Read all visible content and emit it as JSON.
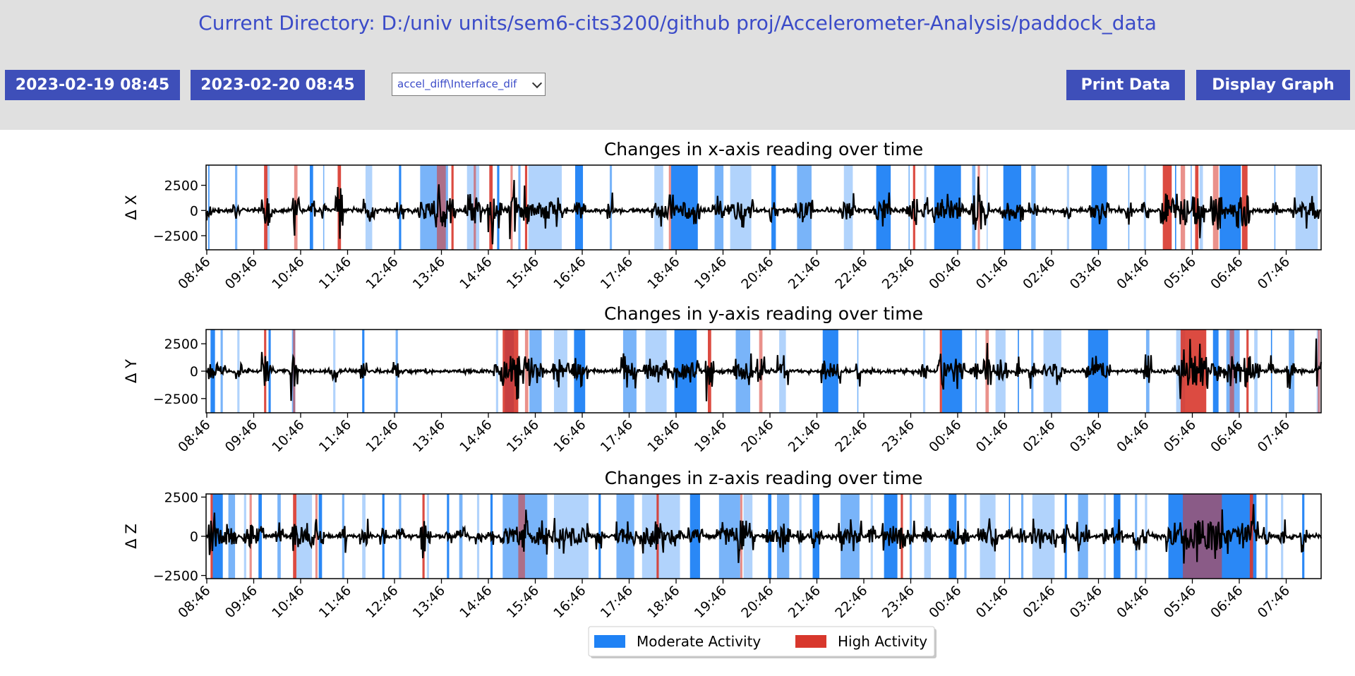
{
  "header": {
    "directory_label": "Current Directory: D:/univ units/sem6-cits3200/github proj/Accelerometer-Analysis/paddock_data"
  },
  "toolbar": {
    "start_datetime": "2023-02-19 08:45",
    "end_datetime": "2023-02-20 08:45",
    "file_select_value": "accel_diff\\Interface_dif",
    "print_label": "Print Data",
    "display_label": "Display Graph"
  },
  "colors": {
    "toolbar_bg": "#e0e0e0",
    "button_bg": "#3e4fb9",
    "directory_text": "#3b4bc8",
    "moderate": "#1f82f5",
    "high": "#d8372c",
    "signal": "#000000"
  },
  "chart_data": [
    {
      "type": "line",
      "title": "Changes in x-axis reading over time",
      "xlabel": "",
      "ylabel": "Δ X",
      "x_ticks": [
        "08:46",
        "09:46",
        "10:46",
        "11:46",
        "12:46",
        "13:46",
        "14:46",
        "15:46",
        "16:46",
        "17:46",
        "18:46",
        "19:46",
        "20:46",
        "21:46",
        "22:46",
        "23:46",
        "00:46",
        "01:46",
        "02:46",
        "03:46",
        "04:46",
        "05:46",
        "06:46",
        "07:46"
      ],
      "y_ticks": [
        2500,
        0,
        -2500
      ],
      "ylim": [
        -3900,
        4500
      ],
      "series": [
        {
          "values": []
        }
      ],
      "activity_bands": {
        "moderate": [
          [
            0.2,
            0.3
          ],
          [
            2.6,
            2.8
          ],
          [
            5.4,
            5.7
          ],
          [
            9.3,
            9.6
          ],
          [
            10.5,
            10.6
          ],
          [
            14.3,
            14.9
          ],
          [
            17.3,
            17.5
          ],
          [
            19.2,
            21.7
          ],
          [
            23.4,
            24.5
          ],
          [
            26.1,
            26.3
          ],
          [
            28.0,
            28.2
          ],
          [
            28.9,
            31.9
          ],
          [
            33.1,
            33.8
          ],
          [
            36.2,
            36.4
          ],
          [
            40.2,
            41.0
          ],
          [
            41.7,
            44.1
          ],
          [
            45.6,
            46.4
          ],
          [
            47.0,
            48.9
          ],
          [
            50.7,
            51.1
          ],
          [
            53.0,
            54.3
          ],
          [
            57.2,
            58.0
          ],
          [
            60.1,
            61.4
          ],
          [
            63.0,
            63.1
          ],
          [
            64.4,
            64.6
          ],
          [
            65.3,
            67.7
          ],
          [
            68.7,
            69.0
          ],
          [
            70.0,
            70.1
          ],
          [
            71.5,
            73.1
          ],
          [
            74.0,
            74.4
          ],
          [
            77.2,
            77.4
          ],
          [
            79.4,
            80.8
          ],
          [
            82.7,
            82.8
          ],
          [
            84.1,
            84.3
          ],
          [
            86.9,
            87.0
          ],
          [
            88.3,
            88.4
          ],
          [
            89.1,
            89.4
          ],
          [
            90.9,
            92.8
          ],
          [
            95.8,
            95.9
          ],
          [
            97.7,
            99.7
          ]
        ],
        "high": [
          [
            5.2,
            5.5
          ],
          [
            7.9,
            8.2
          ],
          [
            11.8,
            12.1
          ],
          [
            20.7,
            21.5
          ],
          [
            22.0,
            22.2
          ],
          [
            24.0,
            24.2
          ],
          [
            25.4,
            25.7
          ],
          [
            27.3,
            27.5
          ],
          [
            28.6,
            28.8
          ],
          [
            41.5,
            41.7
          ],
          [
            63.4,
            63.6
          ],
          [
            69.2,
            69.4
          ],
          [
            85.8,
            86.6
          ],
          [
            87.4,
            87.8
          ],
          [
            88.7,
            89.0
          ],
          [
            90.3,
            90.8
          ],
          [
            92.9,
            93.4
          ]
        ]
      }
    },
    {
      "type": "line",
      "title": "Changes in y-axis reading over time",
      "xlabel": "",
      "ylabel": "Δ Y",
      "x_ticks": [
        "08:46",
        "09:46",
        "10:46",
        "11:46",
        "12:46",
        "13:46",
        "14:46",
        "15:46",
        "16:46",
        "17:46",
        "18:46",
        "19:46",
        "20:46",
        "21:46",
        "22:46",
        "23:46",
        "00:46",
        "01:46",
        "02:46",
        "03:46",
        "04:46",
        "05:46",
        "06:46",
        "07:46"
      ],
      "y_ticks": [
        2500,
        0,
        -2500
      ],
      "ylim": [
        -3800,
        3800
      ],
      "series": [
        {
          "values": []
        }
      ],
      "activity_bands": {
        "moderate": [
          [
            0.4,
            0.8
          ],
          [
            1.3,
            1.5
          ],
          [
            2.8,
            3.0
          ],
          [
            5.6,
            5.8
          ],
          [
            7.7,
            8.0
          ],
          [
            11.4,
            11.6
          ],
          [
            14.0,
            14.2
          ],
          [
            17.0,
            17.2
          ],
          [
            26.0,
            26.2
          ],
          [
            26.8,
            27.6
          ],
          [
            29.0,
            30.1
          ],
          [
            31.2,
            32.4
          ],
          [
            33.0,
            34.0
          ],
          [
            37.4,
            38.6
          ],
          [
            39.4,
            41.3
          ],
          [
            42.0,
            44.0
          ],
          [
            47.5,
            48.8
          ],
          [
            51.4,
            52.0
          ],
          [
            55.3,
            56.7
          ],
          [
            58.4,
            58.5
          ],
          [
            64.3,
            64.5
          ],
          [
            66.0,
            67.8
          ],
          [
            69.0,
            69.1
          ],
          [
            70.8,
            71.7
          ],
          [
            72.8,
            72.9
          ],
          [
            74.0,
            74.2
          ],
          [
            75.1,
            76.7
          ],
          [
            79.1,
            80.9
          ],
          [
            84.3,
            84.6
          ],
          [
            87.0,
            87.8
          ],
          [
            90.3,
            90.8
          ],
          [
            91.5,
            92.7
          ],
          [
            94.0,
            94.3
          ],
          [
            95.5,
            95.6
          ],
          [
            97.1,
            97.6
          ],
          [
            99.6,
            99.9
          ]
        ],
        "high": [
          [
            5.2,
            5.4
          ],
          [
            7.8,
            8.0
          ],
          [
            26.6,
            28.0
          ],
          [
            28.6,
            28.9
          ],
          [
            45.0,
            45.3
          ],
          [
            49.6,
            49.9
          ],
          [
            65.8,
            66.0
          ],
          [
            69.9,
            70.2
          ],
          [
            87.4,
            89.7
          ],
          [
            91.8,
            92.2
          ],
          [
            93.3,
            93.5
          ],
          [
            99.7,
            99.9
          ]
        ]
      }
    },
    {
      "type": "line",
      "title": "Changes in z-axis reading over time",
      "xlabel": "",
      "ylabel": "Δ Z",
      "x_ticks": [
        "08:46",
        "09:46",
        "10:46",
        "11:46",
        "12:46",
        "13:46",
        "14:46",
        "15:46",
        "16:46",
        "17:46",
        "18:46",
        "19:46",
        "20:46",
        "21:46",
        "22:46",
        "23:46",
        "00:46",
        "01:46",
        "02:46",
        "03:46",
        "04:46",
        "05:46",
        "06:46",
        "07:46"
      ],
      "y_ticks": [
        2500,
        0,
        -2500
      ],
      "ylim": [
        -2700,
        2700
      ],
      "series": [
        {
          "values": []
        }
      ],
      "activity_bands": {
        "moderate": [
          [
            0.6,
            1.5
          ],
          [
            2.0,
            2.6
          ],
          [
            3.4,
            3.6
          ],
          [
            4.7,
            5.0
          ],
          [
            6.4,
            6.7
          ],
          [
            8.1,
            9.5
          ],
          [
            10.1,
            10.4
          ],
          [
            12.2,
            12.4
          ],
          [
            14.0,
            14.3
          ],
          [
            15.8,
            16.0
          ],
          [
            17.3,
            17.5
          ],
          [
            19.8,
            20.0
          ],
          [
            21.6,
            21.8
          ],
          [
            22.7,
            23.0
          ],
          [
            24.3,
            24.5
          ],
          [
            25.5,
            25.7
          ],
          [
            26.6,
            30.6
          ],
          [
            31.2,
            34.3
          ],
          [
            35.2,
            35.4
          ],
          [
            36.8,
            38.4
          ],
          [
            39.1,
            42.5
          ],
          [
            43.4,
            44.3
          ],
          [
            46.0,
            47.9
          ],
          [
            48.2,
            49.0
          ],
          [
            50.4,
            50.7
          ],
          [
            51.2,
            52.3
          ],
          [
            53.2,
            53.4
          ],
          [
            54.4,
            55.0
          ],
          [
            56.9,
            58.6
          ],
          [
            59.6,
            59.8
          ],
          [
            60.8,
            62.0
          ],
          [
            63.1,
            63.3
          ],
          [
            64.4,
            65.0
          ],
          [
            66.6,
            67.3
          ],
          [
            68.0,
            68.2
          ],
          [
            69.4,
            70.8
          ],
          [
            72.0,
            72.1
          ],
          [
            73.1,
            73.3
          ],
          [
            74.1,
            76.1
          ],
          [
            77.0,
            77.2
          ],
          [
            78.2,
            79.1
          ],
          [
            80.5,
            80.7
          ],
          [
            81.4,
            82.0
          ],
          [
            83.3,
            83.5
          ],
          [
            84.2,
            84.4
          ],
          [
            86.3,
            94.2
          ],
          [
            95.0,
            95.2
          ],
          [
            96.4,
            96.6
          ],
          [
            98.3,
            98.5
          ]
        ],
        "high": [
          [
            0.4,
            0.6
          ],
          [
            3.9,
            4.1
          ],
          [
            7.8,
            8.1
          ],
          [
            9.8,
            10.0
          ],
          [
            19.4,
            19.6
          ],
          [
            28.0,
            28.6
          ],
          [
            40.4,
            40.6
          ],
          [
            47.9,
            48.1
          ],
          [
            62.3,
            62.5
          ],
          [
            87.6,
            91.1
          ],
          [
            93.6,
            93.9
          ]
        ]
      }
    }
  ],
  "legend": {
    "items": [
      {
        "label": "Moderate Activity",
        "color": "#1f82f5"
      },
      {
        "label": "High Activity",
        "color": "#d8372c"
      }
    ],
    "placement": "bottom-center"
  }
}
